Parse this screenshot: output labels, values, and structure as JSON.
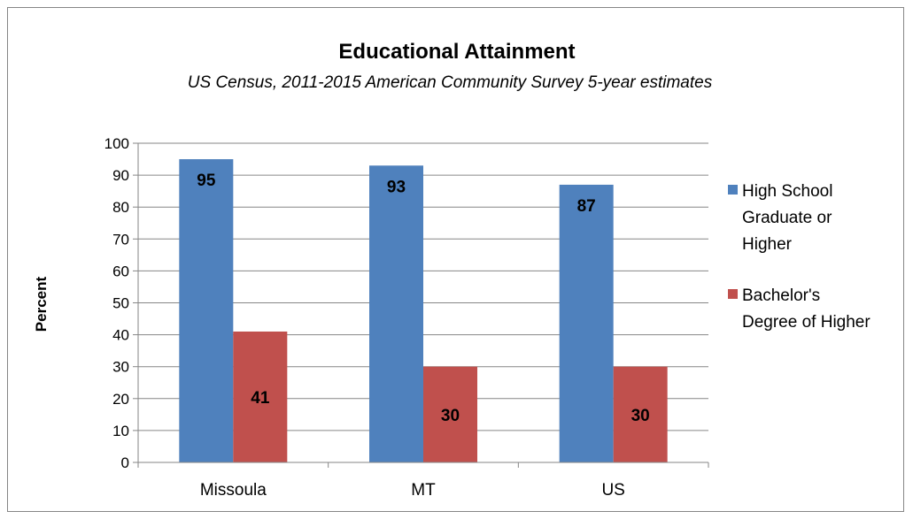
{
  "chart_data": {
    "type": "bar",
    "title": "Educational Attainment",
    "subtitle": "US Census, 2011-2015 American Community Survey 5-year estimates",
    "ylabel": "Percent",
    "xlabel": "",
    "ylim": [
      0,
      100
    ],
    "yticks": [
      0,
      10,
      20,
      30,
      40,
      50,
      60,
      70,
      80,
      90,
      100
    ],
    "categories": [
      "Missoula",
      "MT",
      "US"
    ],
    "series": [
      {
        "name": "High School Graduate or Higher",
        "legend_lines": [
          "High School",
          "Graduate or",
          "Higher"
        ],
        "values": [
          95,
          93,
          87
        ],
        "color": "#4F81BD"
      },
      {
        "name": "Bachelor's Degree of Higher",
        "legend_lines": [
          "Bachelor's",
          "Degree of Higher"
        ],
        "values": [
          41,
          30,
          30
        ],
        "color": "#C0504D"
      }
    ],
    "grid": true,
    "legend_position": "right",
    "data_labels": true
  }
}
